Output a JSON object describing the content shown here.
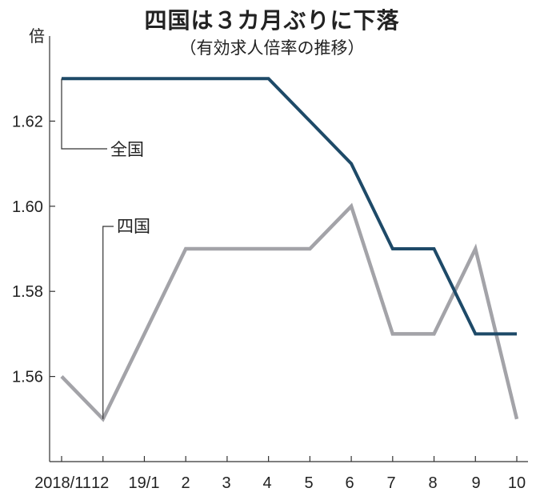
{
  "header": {
    "title": "四国は３カ月ぶりに下落",
    "subtitle": "（有効求人倍率の推移）"
  },
  "chart_data": {
    "type": "line",
    "title": "四国は３カ月ぶりに下落",
    "subtitle": "（有効求人倍率の推移）",
    "ylabel": "倍",
    "xlabel": "",
    "categories": [
      "2018/11",
      "12",
      "19/1",
      "2",
      "3",
      "4",
      "5",
      "6",
      "7",
      "8",
      "9",
      "10"
    ],
    "x_tick_labels": [
      "2018/11",
      "12",
      "19/1",
      "2",
      "3",
      "4",
      "5",
      "6",
      "7",
      "8",
      "9",
      "10"
    ],
    "ylim": [
      1.54,
      1.64
    ],
    "y_ticks": [
      "1.56",
      "1.58",
      "1.60",
      "1.62"
    ],
    "grid": false,
    "series": [
      {
        "name": "全国",
        "color": "#1e4a68",
        "values": [
          1.63,
          1.63,
          1.63,
          1.63,
          1.63,
          1.63,
          1.62,
          1.61,
          1.59,
          1.59,
          1.57,
          1.57
        ]
      },
      {
        "name": "四国",
        "color": "#a3a3a8",
        "values": [
          1.56,
          1.55,
          1.57,
          1.59,
          1.59,
          1.59,
          1.59,
          1.6,
          1.57,
          1.57,
          1.59,
          1.55
        ]
      }
    ],
    "annotations": [
      "全国",
      "四国"
    ]
  }
}
